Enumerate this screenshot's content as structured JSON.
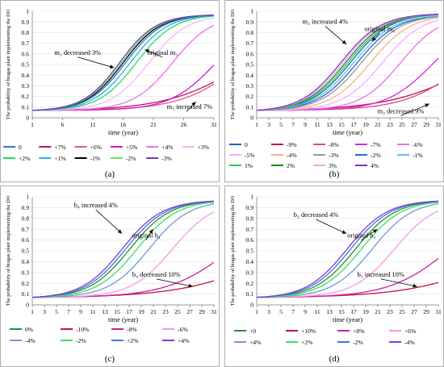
{
  "figure": {
    "background": "#ffffff",
    "legend_text_color": "#000000"
  },
  "chart_data": [
    {
      "id": "a",
      "panel_label": "(a)",
      "type": "line",
      "xlabel": "time (year)",
      "ylabel": "The probability of biogas plant implementing the DO",
      "x_ticks": [
        1,
        6,
        11,
        16,
        21,
        26,
        31
      ],
      "y_ticks": [
        "0",
        "0.1",
        "0.2",
        "0.3",
        "0.4",
        "0.5",
        "0.6",
        "0.7",
        "0.8",
        "0.9",
        "1"
      ],
      "xlim": [
        1,
        31
      ],
      "ylim": [
        0,
        1
      ],
      "grid": true,
      "legend_position": "bottom",
      "legend_columns": 6,
      "y0": 0.07,
      "annotations": [
        {
          "text": "m₃ decreased 3%",
          "x": 8.5,
          "y": 0.57,
          "tx": 14.5,
          "ty": 0.47
        },
        {
          "text": "original m₃",
          "x": 22.5,
          "y": 0.57,
          "tx": 19.6,
          "ty": 0.64
        },
        {
          "text": "m₃ increased 7%",
          "x": 26.5,
          "y": 0.06,
          "tx": 28.0,
          "ty": 0.15
        }
      ],
      "series": [
        {
          "name": "0",
          "color": "#2e75d6",
          "mid": 16.4,
          "k": 0.325,
          "cap": 0.97
        },
        {
          "name": "+7%",
          "color": "#c0145a",
          "mid": 36.5,
          "k": 0.155,
          "cap": 0.97
        },
        {
          "name": "+6%",
          "color": "#ee5098",
          "mid": 36.0,
          "k": 0.195,
          "cap": 0.97
        },
        {
          "name": "+5%",
          "color": "#cf16cf",
          "mid": 31.4,
          "k": 0.265,
          "cap": 0.97
        },
        {
          "name": "+4%",
          "color": "#f06cf0",
          "mid": 24.2,
          "k": 0.305,
          "cap": 0.97
        },
        {
          "name": "+3%",
          "color": "#f6b6f0",
          "mid": 20.3,
          "k": 0.315,
          "cap": 0.97
        },
        {
          "name": "+2%",
          "color": "#24d96a",
          "mid": 18.2,
          "k": 0.32,
          "cap": 0.97
        },
        {
          "name": "+1%",
          "color": "#28b4e0",
          "mid": 17.2,
          "k": 0.322,
          "cap": 0.97
        },
        {
          "name": "-1%",
          "color": "#000000",
          "mid": 16.0,
          "k": 0.328,
          "cap": 0.97
        },
        {
          "name": "-2%",
          "color": "#7ad85a",
          "mid": 15.7,
          "k": 0.33,
          "cap": 0.97
        },
        {
          "name": "-3%",
          "color": "#6a3cc2",
          "mid": 15.4,
          "k": 0.332,
          "cap": 0.97
        }
      ]
    },
    {
      "id": "b",
      "panel_label": "(b)",
      "type": "line",
      "xlabel": "time (year)",
      "ylabel": "The probability of biogas plant implementing the DO",
      "x_ticks": [
        1,
        3,
        5,
        7,
        9,
        11,
        13,
        15,
        17,
        19,
        21,
        23,
        25,
        27,
        29,
        31
      ],
      "y_ticks": [
        "0",
        "0.1",
        "0.2",
        "0.3",
        "0.4",
        "0.5",
        "0.6",
        "0.7",
        "0.8",
        "0.9",
        "1"
      ],
      "xlim": [
        1,
        31
      ],
      "ylim": [
        0,
        1
      ],
      "grid": true,
      "legend_position": "bottom",
      "legend_columns": 5,
      "y0": 0.07,
      "annotations": [
        {
          "text": "m₂ increased 4%",
          "x": 12.3,
          "y": 0.86,
          "tx": 15.8,
          "ty": 0.69
        },
        {
          "text": "original m₂",
          "x": 21.3,
          "y": 0.79,
          "tx": 20.0,
          "ty": 0.72
        },
        {
          "text": "m₂ decreased 9%",
          "x": 24.8,
          "y": 0.02,
          "tx": 29.5,
          "ty": 0.13
        }
      ],
      "series": [
        {
          "name": "0",
          "color": "#1f5fbf",
          "mid": 16.5,
          "k": 0.3,
          "cap": 0.98
        },
        {
          "name": "-9%",
          "color": "#b8124f",
          "mid": 38.0,
          "k": 0.14,
          "cap": 0.97
        },
        {
          "name": "-8%",
          "color": "#e0448e",
          "mid": 35.8,
          "k": 0.2,
          "cap": 0.97
        },
        {
          "name": "-7%",
          "color": "#d82ad8",
          "mid": 30.3,
          "k": 0.255,
          "cap": 0.97
        },
        {
          "name": "-6%",
          "color": "#f06cf0",
          "mid": 24.8,
          "k": 0.3,
          "cap": 0.97
        },
        {
          "name": "-5%",
          "color": "#f7b0f2",
          "mid": 21.8,
          "k": 0.3,
          "cap": 0.97
        },
        {
          "name": "-4%",
          "color": "#f4b485",
          "mid": 19.8,
          "k": 0.3,
          "cap": 0.97
        },
        {
          "name": "-3%",
          "color": "#9a9a9a",
          "mid": 18.3,
          "k": 0.3,
          "cap": 0.97
        },
        {
          "name": "-2%",
          "color": "#2a66d0",
          "mid": 17.6,
          "k": 0.3,
          "cap": 0.97
        },
        {
          "name": "-1%",
          "color": "#5fc0f0",
          "mid": 17.0,
          "k": 0.3,
          "cap": 0.97
        },
        {
          "name": "1%",
          "color": "#2ec84f",
          "mid": 16.1,
          "k": 0.3,
          "cap": 0.98
        },
        {
          "name": "2%",
          "color": "#1a8a1a",
          "mid": 15.7,
          "k": 0.3,
          "cap": 0.98
        },
        {
          "name": "3%",
          "color": "#f5a3f5",
          "mid": 15.3,
          "k": 0.3,
          "cap": 0.98
        },
        {
          "name": "4%",
          "color": "#7a2fc8",
          "mid": 14.9,
          "k": 0.3,
          "cap": 0.98
        }
      ]
    },
    {
      "id": "c",
      "panel_label": "(c)",
      "type": "line",
      "xlabel": "time (year)",
      "ylabel": "The probability of biogas plant implementing the DO",
      "x_ticks": [
        1,
        3,
        5,
        7,
        9,
        11,
        13,
        15,
        17,
        19,
        21,
        23,
        25,
        27,
        29,
        31
      ],
      "y_ticks": [
        "0",
        "0.1",
        "0.2",
        "0.3",
        "0.4",
        "0.5",
        "0.6",
        "0.7",
        "0.8",
        "0.9",
        "1"
      ],
      "xlim": [
        1,
        31
      ],
      "ylim": [
        0,
        1
      ],
      "grid": true,
      "legend_position": "bottom",
      "legend_columns": 4,
      "y0": 0.07,
      "annotations": [
        {
          "text": "b₄ increased 4%",
          "x": 11.5,
          "y": 0.88,
          "tx": 15.8,
          "ty": 0.66
        },
        {
          "text": "original b₄",
          "x": 19.8,
          "y": 0.6,
          "tx": 20.9,
          "ty": 0.7
        },
        {
          "text": "b₄ decreased 10%",
          "x": 21.5,
          "y": 0.24,
          "tx": 27.5,
          "ty": 0.17
        }
      ],
      "series": [
        {
          "name": "0%",
          "color": "#2e8b2e",
          "mid": 17.1,
          "k": 0.3,
          "cap": 0.97
        },
        {
          "name": "-10%",
          "color": "#c8103a",
          "mid": 43.0,
          "k": 0.13,
          "cap": 0.97
        },
        {
          "name": "-8%",
          "color": "#c81ea0",
          "mid": 34.0,
          "k": 0.19,
          "cap": 0.97
        },
        {
          "name": "-6%",
          "color": "#f39be0",
          "mid": 24.2,
          "k": 0.29,
          "cap": 0.97
        },
        {
          "name": "-4%",
          "color": "#6e9bd6",
          "mid": 20.3,
          "k": 0.3,
          "cap": 0.97
        },
        {
          "name": "-2%",
          "color": "#3ddc6a",
          "mid": 18.3,
          "k": 0.3,
          "cap": 0.97
        },
        {
          "name": "+2%",
          "color": "#3a78e0",
          "mid": 16.4,
          "k": 0.3,
          "cap": 0.97
        },
        {
          "name": "+4%",
          "color": "#7f3cd8",
          "mid": 15.8,
          "k": 0.3,
          "cap": 0.97
        }
      ]
    },
    {
      "id": "d",
      "panel_label": "(d)",
      "type": "line",
      "xlabel": "time (year)",
      "ylabel": "The probability of biogas plant implementing the DO",
      "x_ticks": [
        1,
        3,
        5,
        7,
        9,
        11,
        13,
        15,
        17,
        19,
        21,
        23,
        25,
        27,
        29,
        31
      ],
      "y_ticks": [
        "0",
        "0.1",
        "0.2",
        "0.3",
        "0.4",
        "0.5",
        "0.6",
        "0.7",
        "0.8",
        "0.9",
        "1"
      ],
      "xlim": [
        1,
        31
      ],
      "ylim": [
        0,
        1
      ],
      "grid": true,
      "legend_position": "bottom",
      "legend_columns": 4,
      "y0": 0.07,
      "annotations": [
        {
          "text": "b₃ decreased 4%",
          "x": 10.8,
          "y": 0.79,
          "tx": 15.8,
          "ty": 0.66
        },
        {
          "text": "original b₃",
          "x": 18.3,
          "y": 0.6,
          "tx": 20.9,
          "ty": 0.7
        },
        {
          "text": "b₃ increased 10%",
          "x": 21.5,
          "y": 0.24,
          "tx": 27.5,
          "ty": 0.17
        }
      ],
      "series": [
        {
          "name": "+0",
          "color": "#2e8b2e",
          "mid": 17.3,
          "k": 0.3,
          "cap": 0.97
        },
        {
          "name": "+10%",
          "color": "#c8103a",
          "mid": 44.0,
          "k": 0.13,
          "cap": 0.97
        },
        {
          "name": "+8%",
          "color": "#c81ea0",
          "mid": 33.0,
          "k": 0.2,
          "cap": 0.97
        },
        {
          "name": "+6%",
          "color": "#f39be0",
          "mid": 23.8,
          "k": 0.29,
          "cap": 0.97
        },
        {
          "name": "+4%",
          "color": "#6e9bd6",
          "mid": 20.1,
          "k": 0.3,
          "cap": 0.97
        },
        {
          "name": "+2%",
          "color": "#3ddc6a",
          "mid": 18.3,
          "k": 0.3,
          "cap": 0.97
        },
        {
          "name": "-2%",
          "color": "#3a78e0",
          "mid": 16.5,
          "k": 0.3,
          "cap": 0.97
        },
        {
          "name": "-4%",
          "color": "#7f3cd8",
          "mid": 15.9,
          "k": 0.3,
          "cap": 0.97
        }
      ]
    }
  ]
}
